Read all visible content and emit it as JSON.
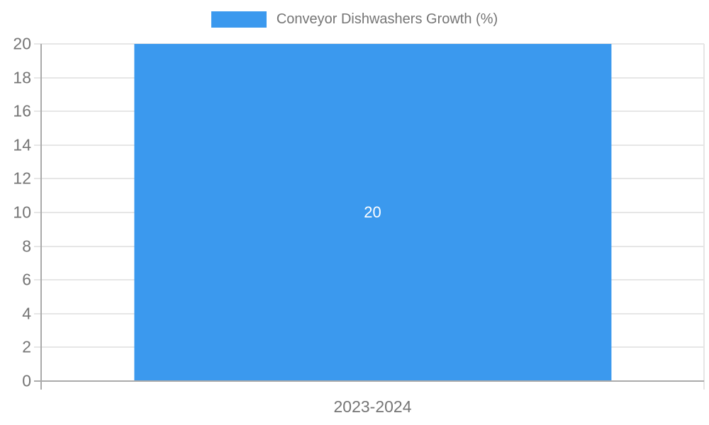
{
  "chart_data": {
    "type": "bar",
    "title": "",
    "legend_position": "top",
    "categories": [
      "2023-2024"
    ],
    "series": [
      {
        "name": "Conveyor Dishwashers Growth (%)",
        "values": [
          20
        ]
      }
    ],
    "value_labels": [
      "20"
    ],
    "ylim": [
      0,
      20
    ],
    "yticks": [
      0,
      2,
      4,
      6,
      8,
      10,
      12,
      14,
      16,
      18,
      20
    ],
    "grid": true,
    "colors": {
      "bar": "#3B99EE",
      "bar_label": "#ffffff",
      "axis": "#aaaaaa",
      "gridline": "#e6e6e6",
      "tick_label": "#757575",
      "legend_text": "#757575",
      "background": "#ffffff"
    }
  }
}
